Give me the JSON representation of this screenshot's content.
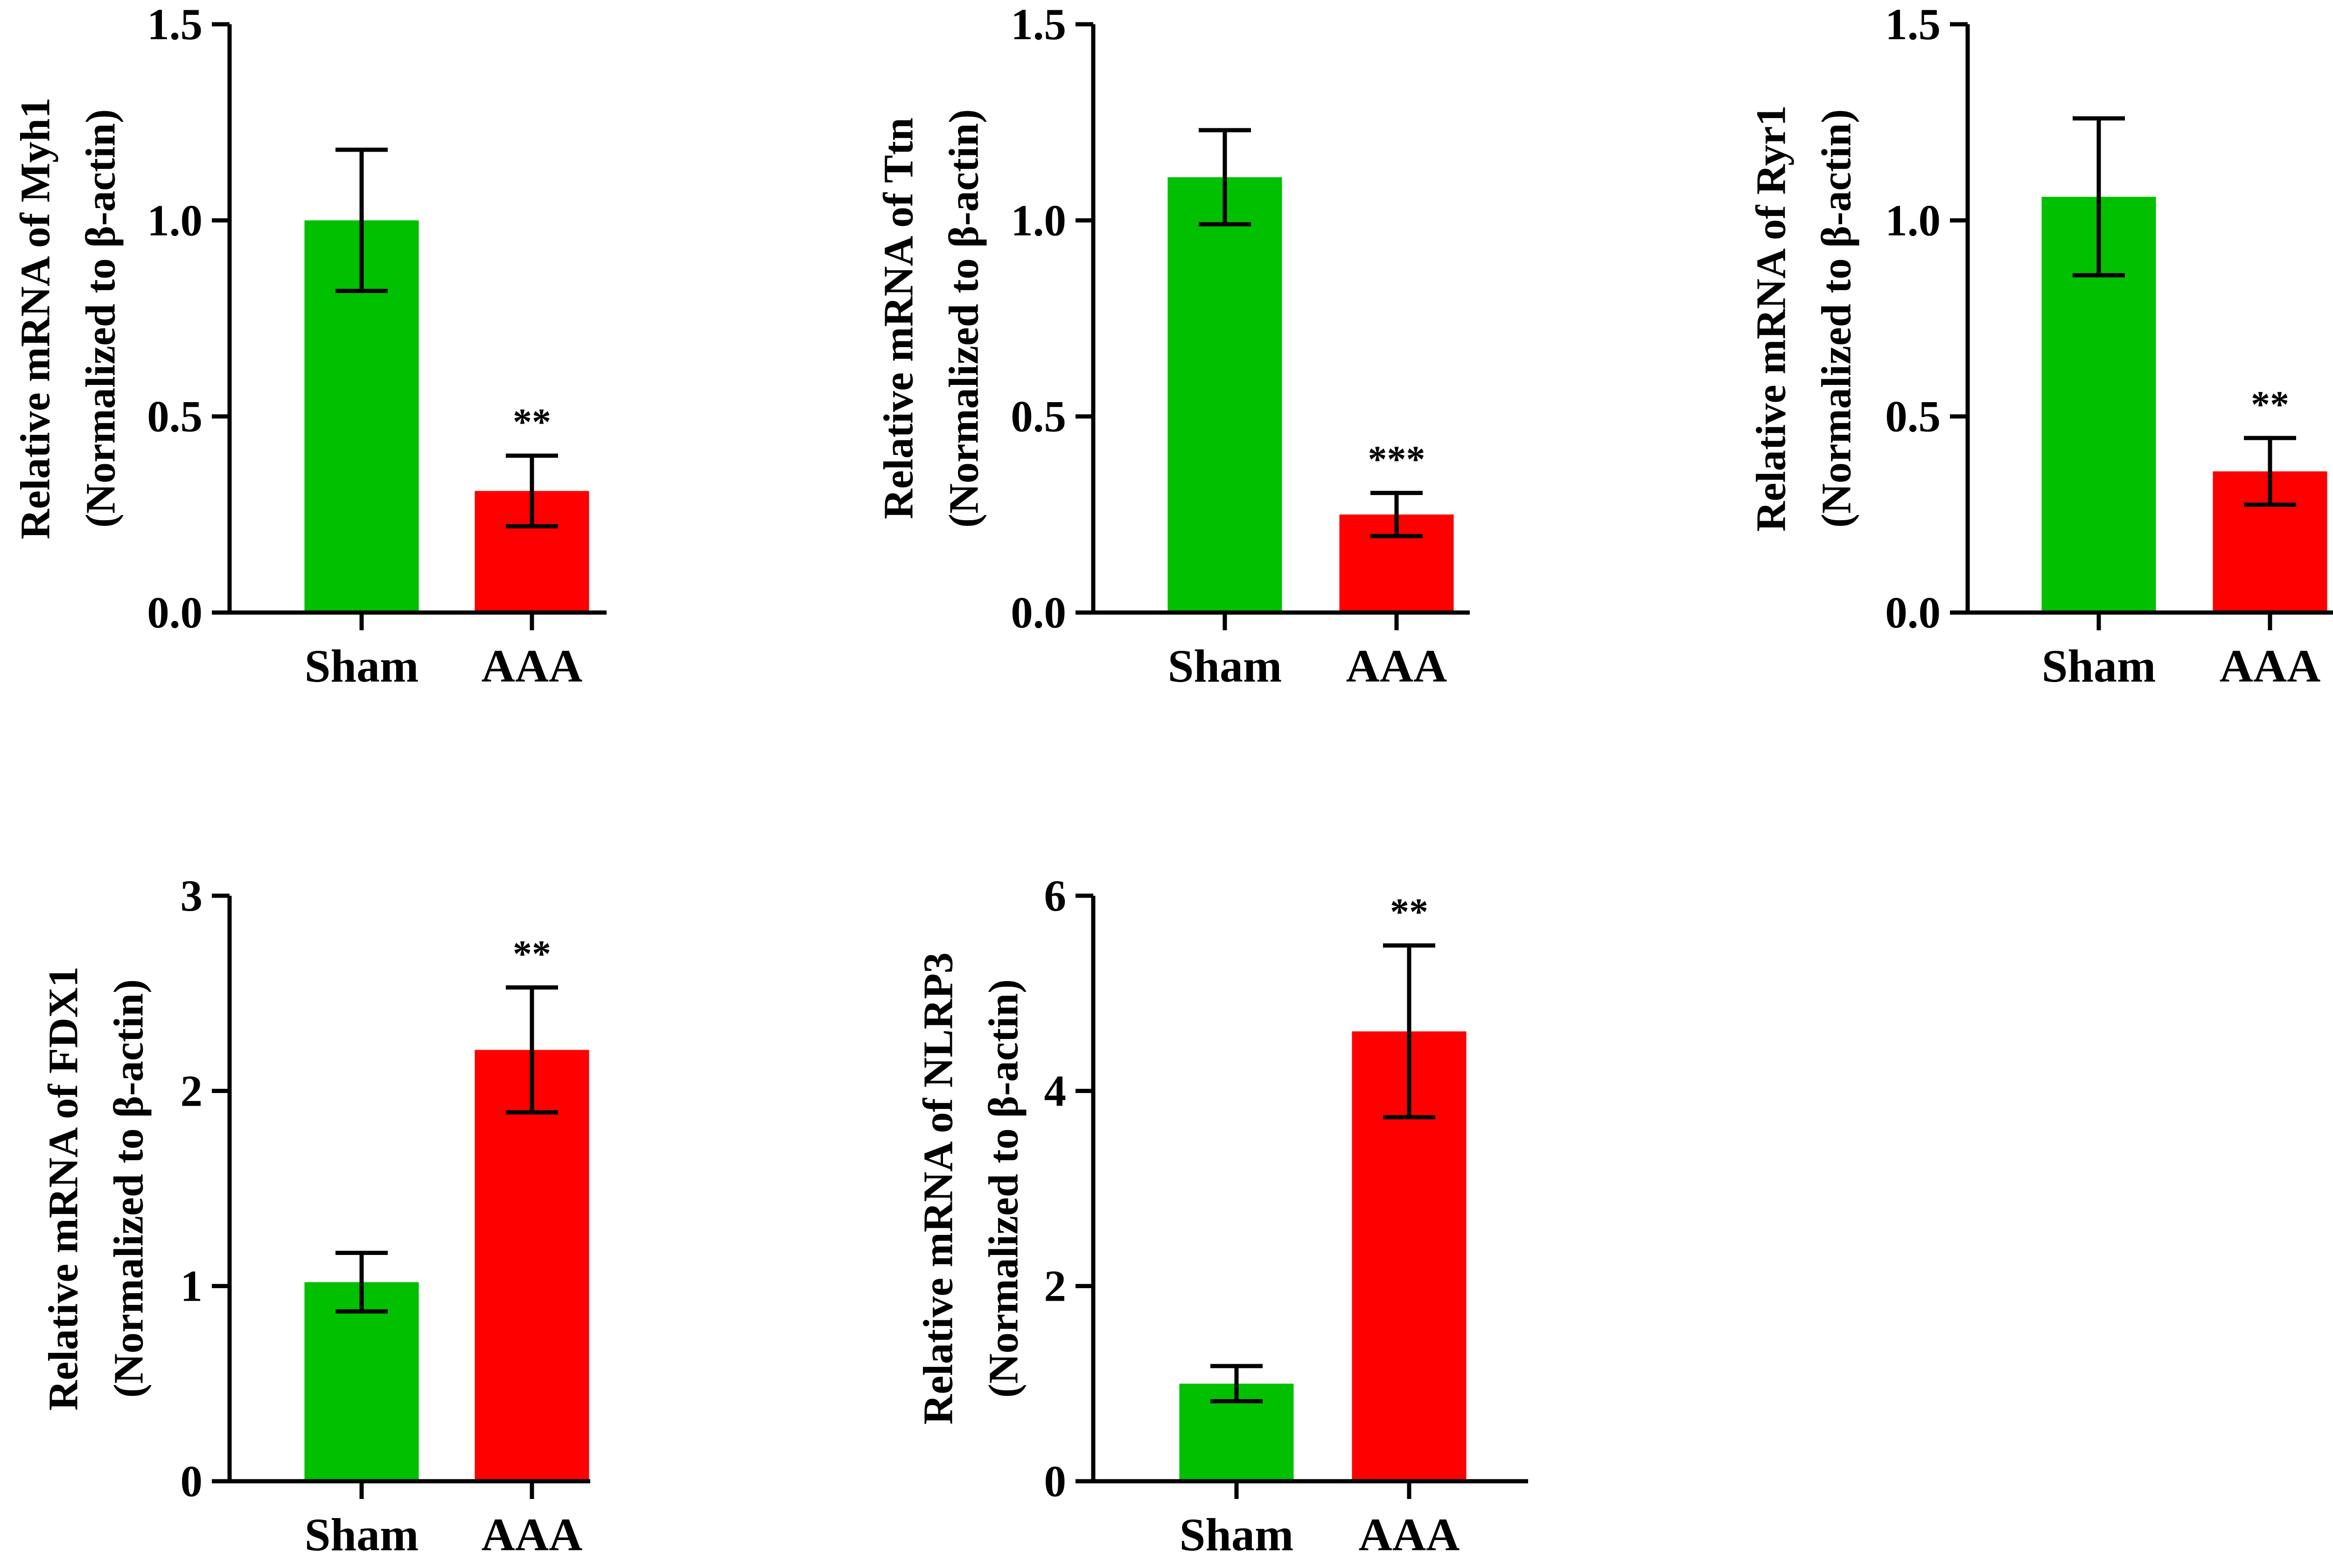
{
  "chart_data": [
    {
      "type": "bar",
      "categories": [
        "Sham",
        "AAA"
      ],
      "values": [
        1.0,
        0.31
      ],
      "errors": [
        0.18,
        0.09
      ],
      "significance": [
        "",
        "**"
      ],
      "ylabel_line1": "Relative mRNA of Myh1",
      "ylabel_line2": "(Normalized to β-actin)",
      "ylim": [
        0,
        1.5
      ],
      "yticks": [
        0.0,
        0.5,
        1.0,
        1.5
      ],
      "ytick_labels": [
        "0.0",
        "0.5",
        "1.0",
        "1.5"
      ],
      "colors": [
        "#00c000",
        "#ff0000"
      ]
    },
    {
      "type": "bar",
      "categories": [
        "Sham",
        "AAA"
      ],
      "values": [
        1.11,
        0.25
      ],
      "errors": [
        0.12,
        0.055
      ],
      "significance": [
        "",
        "***"
      ],
      "ylabel_line1": "Relative mRNA of Ttn",
      "ylabel_line2": "(Normalized to β-actin)",
      "ylim": [
        0,
        1.5
      ],
      "yticks": [
        0.0,
        0.5,
        1.0,
        1.5
      ],
      "ytick_labels": [
        "0.0",
        "0.5",
        "1.0",
        "1.5"
      ],
      "colors": [
        "#00c000",
        "#ff0000"
      ]
    },
    {
      "type": "bar",
      "categories": [
        "Sham",
        "AAA"
      ],
      "values": [
        1.06,
        0.36
      ],
      "errors": [
        0.2,
        0.085
      ],
      "significance": [
        "",
        "**"
      ],
      "ylabel_line1": "Relative mRNA of Ryr1",
      "ylabel_line2": "(Normalized to β-actin)",
      "ylim": [
        0,
        1.5
      ],
      "yticks": [
        0.0,
        0.5,
        1.0,
        1.5
      ],
      "ytick_labels": [
        "0.0",
        "0.5",
        "1.0",
        "1.5"
      ],
      "colors": [
        "#00c000",
        "#ff0000"
      ]
    },
    {
      "type": "bar",
      "categories": [
        "Sham",
        "AAA"
      ],
      "values": [
        1.02,
        2.21
      ],
      "errors": [
        0.15,
        0.32
      ],
      "significance": [
        "",
        "**"
      ],
      "ylabel_line1": "Relative mRNA of FDX1",
      "ylabel_line2": "(Normalized to β-actin)",
      "ylim": [
        0,
        3
      ],
      "yticks": [
        0,
        1,
        2,
        3
      ],
      "ytick_labels": [
        "0",
        "1",
        "2",
        "3"
      ],
      "colors": [
        "#00c000",
        "#ff0000"
      ]
    },
    {
      "type": "bar",
      "categories": [
        "Sham",
        "AAA"
      ],
      "values": [
        1.0,
        4.61
      ],
      "errors": [
        0.18,
        0.88
      ],
      "significance": [
        "",
        "**"
      ],
      "ylabel_line1": "Relative mRNA of NLRP3",
      "ylabel_line2": "(Normalized to β-actin)",
      "ylim": [
        0,
        6
      ],
      "yticks": [
        0,
        2,
        4,
        6
      ],
      "ytick_labels": [
        "0",
        "2",
        "4",
        "6"
      ],
      "colors": [
        "#00c000",
        "#ff0000"
      ]
    }
  ]
}
